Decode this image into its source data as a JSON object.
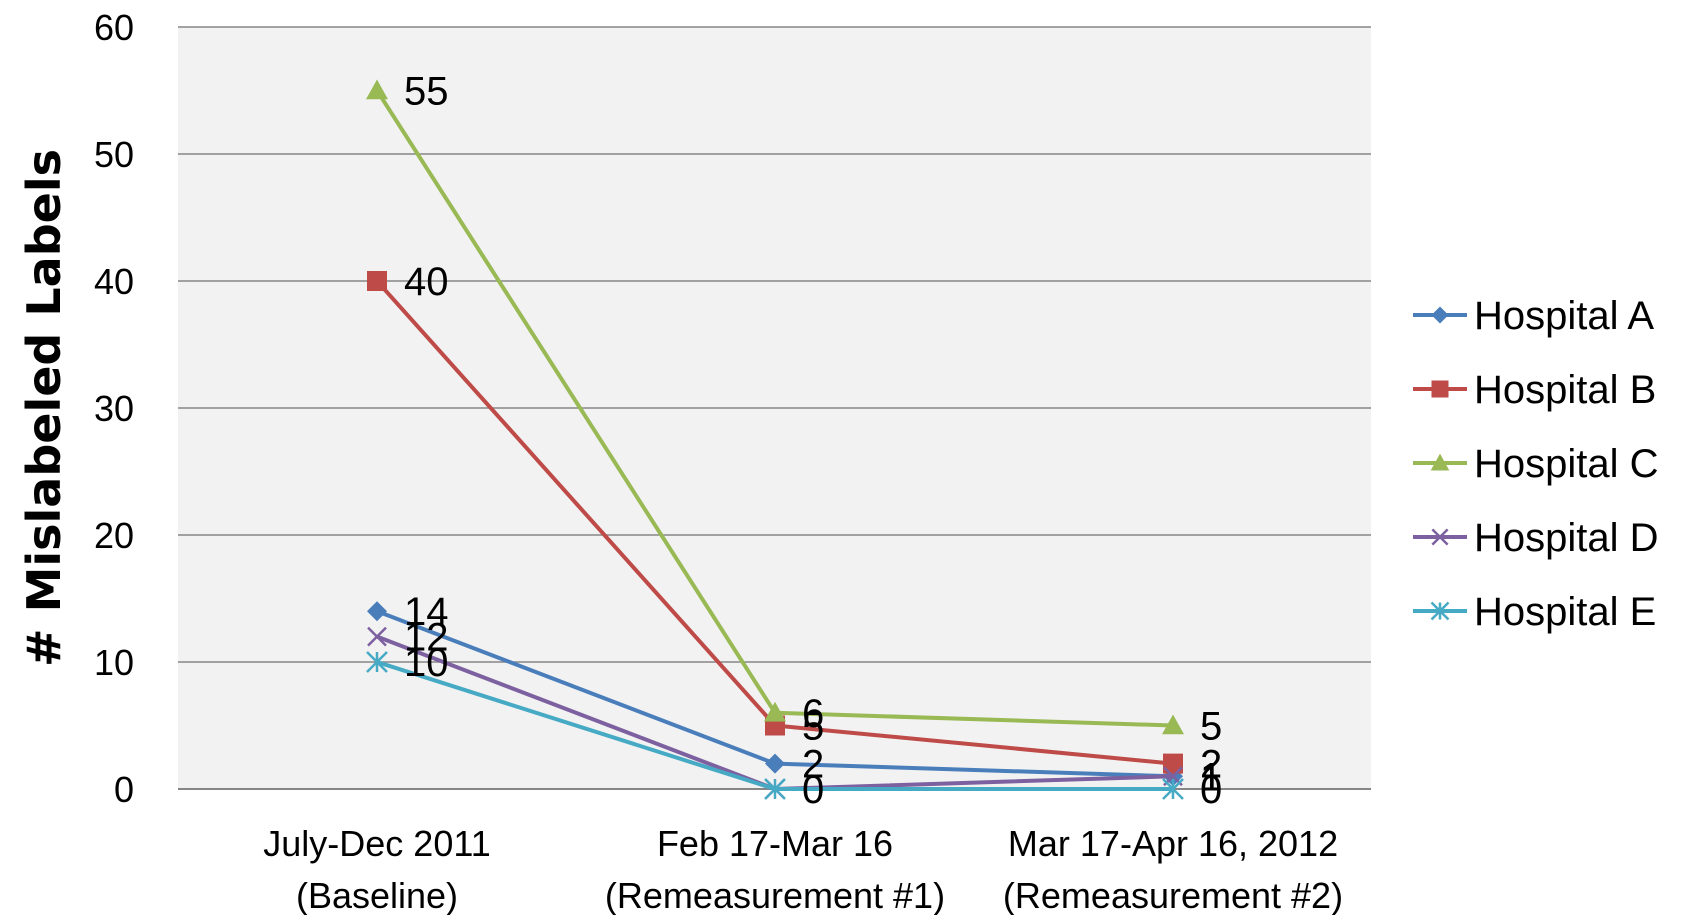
{
  "chart_data": {
    "type": "line",
    "title": "",
    "xlabel": "",
    "ylabel": "# Mislabeled Labels",
    "ylim": [
      0,
      60
    ],
    "yticks": [
      "0",
      "10",
      "20",
      "30",
      "40",
      "50",
      "60"
    ],
    "categories": [
      [
        "July-Dec  2011",
        "(Baseline)"
      ],
      [
        "Feb 17-Mar 16",
        "(Remeasurement  #1)"
      ],
      [
        "Mar 17-Apr 16, 2012",
        "(Remeasurement  #2)"
      ]
    ],
    "grid": true,
    "legend_position": "right",
    "series": [
      {
        "name": "Hospital A",
        "values": [
          14,
          2,
          1
        ],
        "labels": [
          "14",
          "2",
          "1"
        ],
        "color": "#4a7ebb",
        "marker": "diamond"
      },
      {
        "name": "Hospital B",
        "values": [
          40,
          5,
          2
        ],
        "labels": [
          "40",
          "5",
          "2"
        ],
        "color": "#be4b48",
        "marker": "square"
      },
      {
        "name": "Hospital C",
        "values": [
          55,
          6,
          5
        ],
        "labels": [
          "55",
          "6",
          "5"
        ],
        "color": "#98b954",
        "marker": "triangle"
      },
      {
        "name": "Hospital D",
        "values": [
          12,
          0,
          1
        ],
        "labels": [
          "12",
          "",
          "1"
        ],
        "color": "#7d60a0",
        "marker": "x"
      },
      {
        "name": "Hospital E",
        "values": [
          10,
          0,
          0
        ],
        "labels": [
          "10",
          "0",
          "0"
        ],
        "color": "#46aac5",
        "marker": "star"
      }
    ]
  }
}
